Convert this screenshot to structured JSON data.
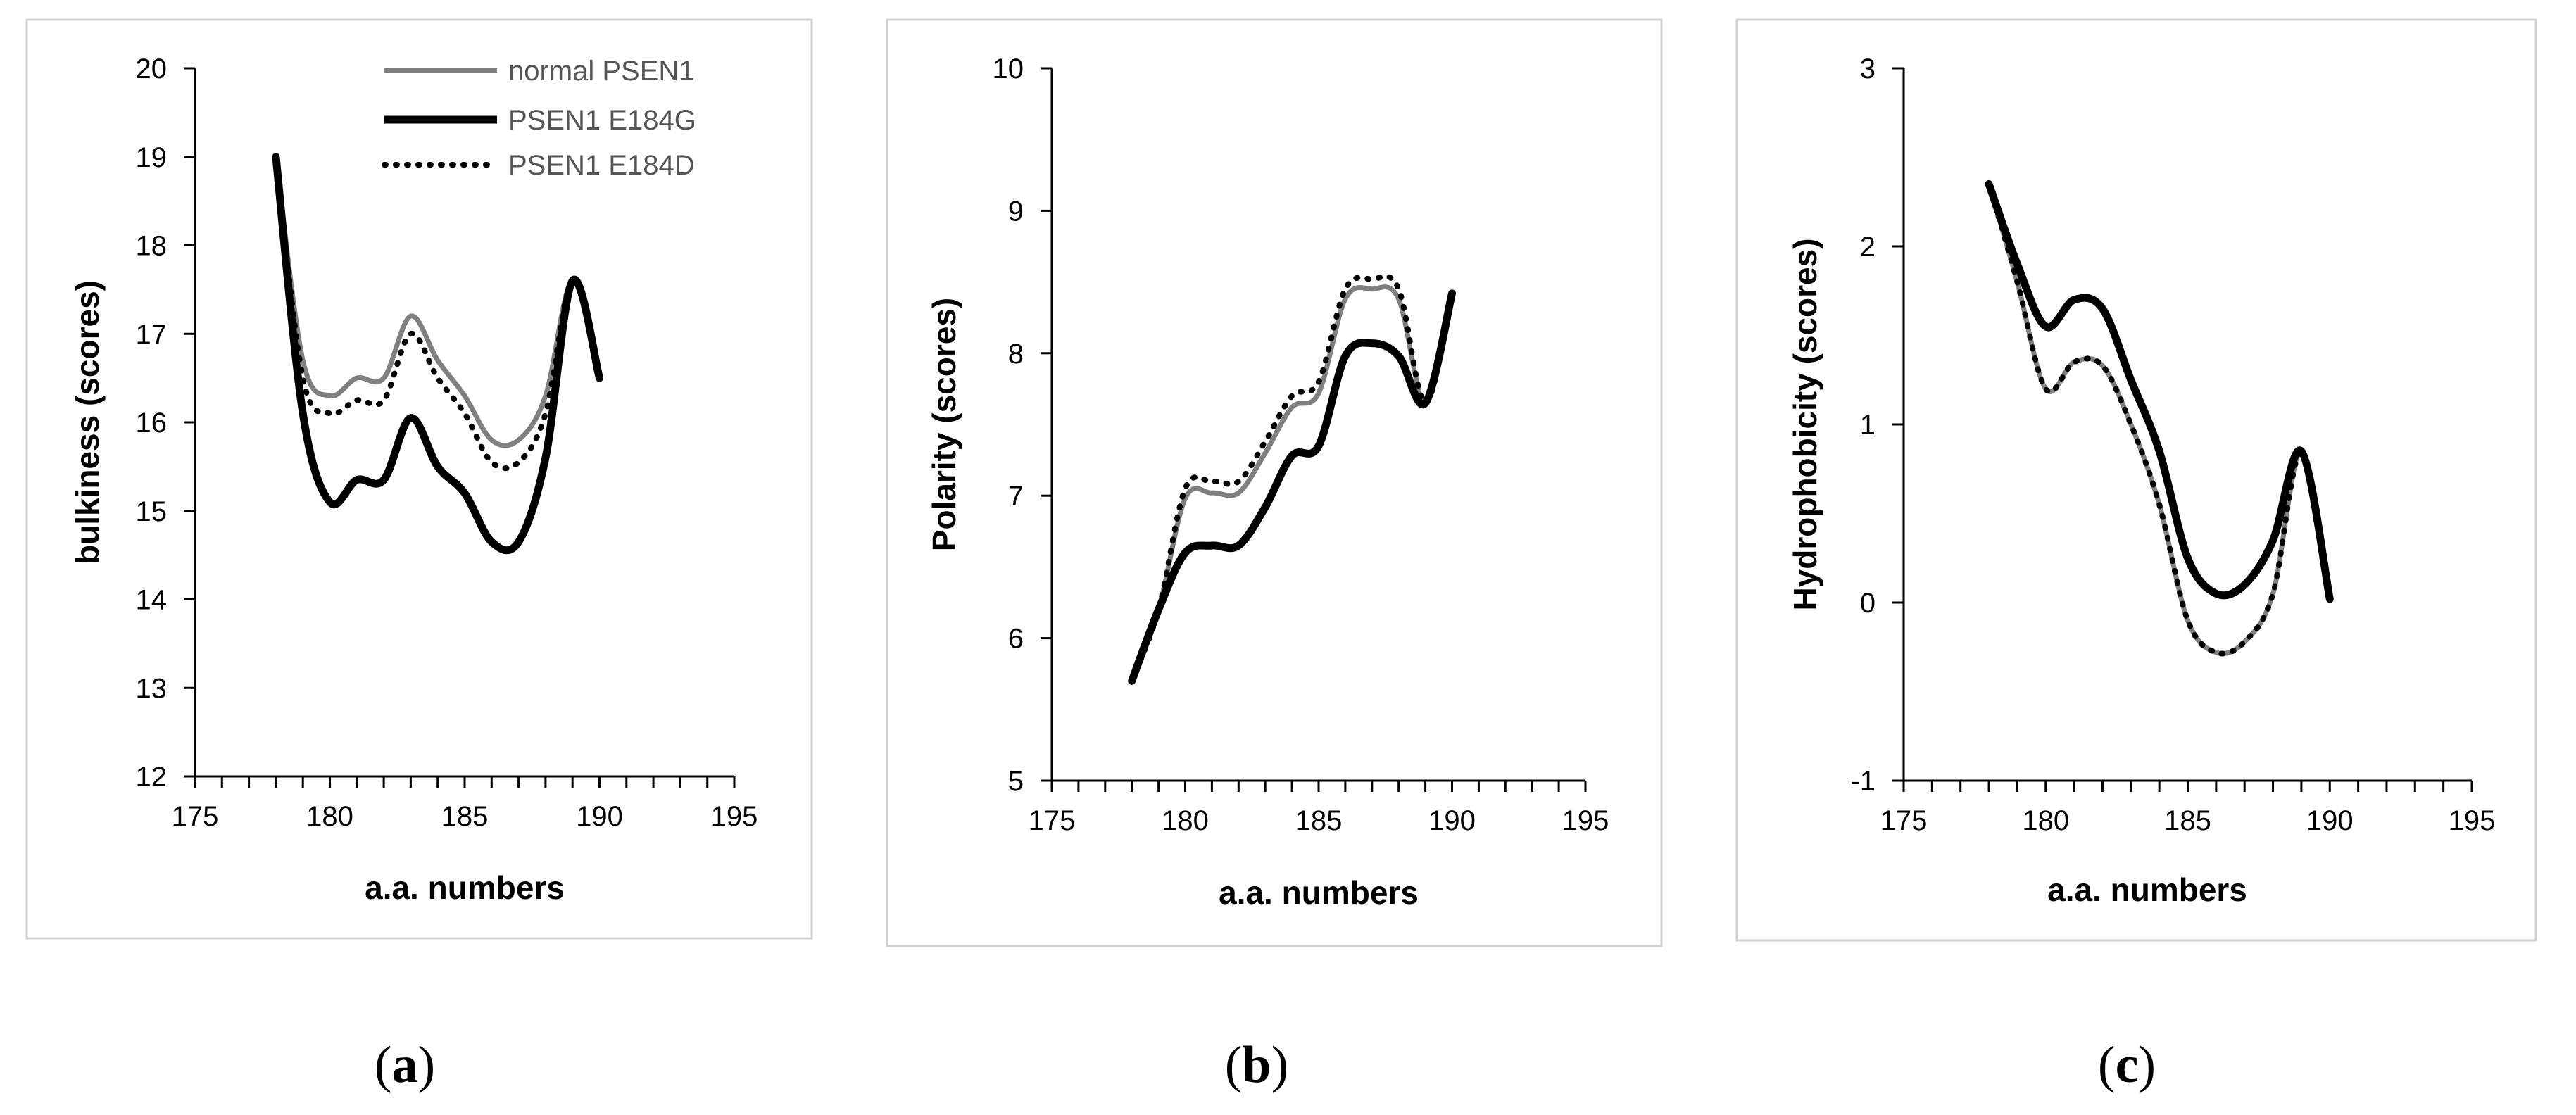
{
  "colors": {
    "normal": "#808080",
    "e184g": "#000000",
    "e184d": "#000000",
    "frame": "#d0d0d0",
    "axis": "#000000"
  },
  "legend": [
    "normal PSEN1",
    "PSEN1 E184G",
    "PSEN1 E184D"
  ],
  "chart_data": [
    {
      "type": "line",
      "caption_letter": "a",
      "xlabel": "a.a. numbers",
      "ylabel": "bulkiness (scores)",
      "xlim": [
        175,
        195
      ],
      "ylim": [
        12,
        20
      ],
      "xticks": [
        175,
        180,
        185,
        190,
        195
      ],
      "yticks": [
        12,
        13,
        14,
        15,
        16,
        17,
        18,
        19,
        20
      ],
      "x": [
        178,
        179,
        180,
        181,
        182,
        183,
        184,
        185,
        186,
        187,
        188,
        189,
        190
      ],
      "series": [
        {
          "name": "normal PSEN1",
          "values": [
            19.0,
            16.7,
            16.3,
            16.5,
            16.5,
            17.2,
            16.7,
            16.3,
            15.8,
            15.8,
            16.3,
            17.6,
            16.5
          ]
        },
        {
          "name": "PSEN1 E184G",
          "values": [
            19.0,
            16.1,
            15.1,
            15.35,
            15.35,
            16.05,
            15.5,
            15.2,
            14.65,
            14.65,
            15.6,
            17.6,
            16.5
          ]
        },
        {
          "name": "PSEN1 E184D",
          "values": [
            19.0,
            16.5,
            16.1,
            16.25,
            16.25,
            17.0,
            16.5,
            16.1,
            15.55,
            15.55,
            16.1,
            17.6,
            16.5
          ]
        }
      ]
    },
    {
      "type": "line",
      "caption_letter": "b",
      "xlabel": "a.a. numbers",
      "ylabel": "Polarity (scores)",
      "xlim": [
        175,
        195
      ],
      "ylim": [
        5,
        10
      ],
      "xticks": [
        175,
        180,
        185,
        190,
        195
      ],
      "yticks": [
        5,
        6,
        7,
        8,
        9,
        10
      ],
      "x": [
        178,
        179,
        180,
        181,
        182,
        183,
        184,
        185,
        186,
        187,
        188,
        189,
        190
      ],
      "series": [
        {
          "name": "normal PSEN1",
          "values": [
            5.7,
            6.2,
            6.98,
            7.02,
            7.02,
            7.3,
            7.62,
            7.72,
            8.38,
            8.45,
            8.38,
            7.65,
            8.42
          ]
        },
        {
          "name": "PSEN1 E184G",
          "values": [
            5.7,
            6.2,
            6.6,
            6.65,
            6.65,
            6.92,
            7.28,
            7.35,
            7.98,
            8.07,
            7.98,
            7.65,
            8.42
          ]
        },
        {
          "name": "PSEN1 E184D",
          "values": [
            5.7,
            6.2,
            7.05,
            7.1,
            7.1,
            7.38,
            7.7,
            7.8,
            8.45,
            8.52,
            8.45,
            7.65,
            8.42
          ]
        }
      ]
    },
    {
      "type": "line",
      "caption_letter": "c",
      "xlabel": "a.a. numbers",
      "ylabel": "Hydrophobicity (scores)",
      "xlim": [
        175,
        195
      ],
      "ylim": [
        -1,
        3
      ],
      "xticks": [
        175,
        180,
        185,
        190,
        195
      ],
      "yticks": [
        -1,
        0,
        1,
        2,
        3
      ],
      "x": [
        178,
        179,
        180,
        181,
        182,
        183,
        184,
        185,
        186,
        187,
        188,
        189,
        190
      ],
      "series": [
        {
          "name": "normal PSEN1",
          "values": [
            2.35,
            1.8,
            1.2,
            1.35,
            1.33,
            1.0,
            0.55,
            -0.1,
            -0.28,
            -0.22,
            0.05,
            0.85,
            0.02
          ]
        },
        {
          "name": "PSEN1 E184G",
          "values": [
            2.35,
            1.9,
            1.55,
            1.7,
            1.65,
            1.25,
            0.85,
            0.25,
            0.05,
            0.1,
            0.35,
            0.85,
            0.02
          ]
        },
        {
          "name": "PSEN1 E184D",
          "values": [
            2.35,
            1.8,
            1.2,
            1.35,
            1.33,
            1.0,
            0.55,
            -0.1,
            -0.28,
            -0.22,
            0.05,
            0.85,
            0.02
          ]
        }
      ]
    }
  ]
}
